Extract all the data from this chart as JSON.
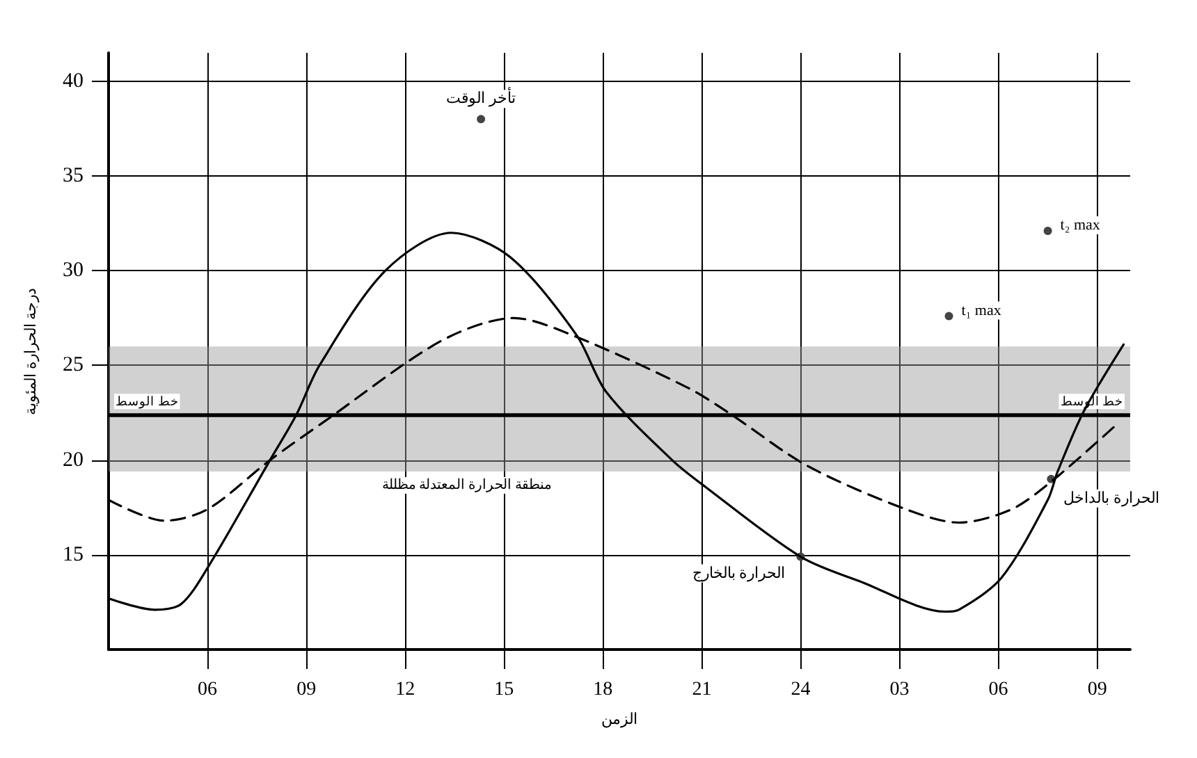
{
  "chart_data": {
    "type": "line",
    "xlabel": "الزمن",
    "ylabel": "درجة الحرارة المئوية",
    "x": [
      "--01-01T03:00",
      "--01-01T04:24",
      "--01-01T05:12",
      "--01-01T06:00",
      "--01-01T07:54",
      "--01-01T08:42",
      "--01-01T09:24",
      "--01-01T11:24",
      "--01-01T13:24",
      "--01-01T15:12",
      "--01-01T17:12",
      "--01-01T18:06",
      "--01-01T20:06",
      "--01-01T21:06",
      "--01-02T00:00",
      "--01-02T01:48",
      "--01-02T04:24",
      "--01-02T04:48",
      "--01-02T06:06",
      "--01-02T07:30",
      "--01-02T07:48",
      "--01-02T08:36",
      "--01-02T09:48"
    ],
    "series": [
      {
        "name": null,
        "color": "#000000",
        "line_style": "solid",
        "values": [
          12.7,
          12.1,
          12.4,
          14.3,
          20,
          22.4,
          25,
          30,
          32,
          30.7,
          26.6,
          23.6,
          20,
          18.6,
          14.9,
          13.6,
          12.0,
          12.1,
          13.8,
          17.9,
          19.4,
          22.6,
          26.1
        ]
      },
      {
        "name": null,
        "color": "#000000",
        "line_style": "dashed",
        "x": [
          "--01-01T03:00",
          "--01-01T04:42",
          "--01-01T06:00",
          "--01-01T07:54",
          "--01-01T09:36",
          "--01-01T13:06",
          "--01-01T15:18",
          "--01-01T17:12",
          "--01-01T20:36",
          "--01-01T21:54",
          "--01-02T00:12",
          "--01-02T03:12",
          "--01-02T04:48",
          "--01-02T06:24",
          "--01-02T07:42",
          "--01-02T09:36"
        ],
        "values": [
          17.9,
          16.8,
          17.4,
          20,
          22.1,
          26.3,
          27.5,
          26.5,
          23.8,
          22.4,
          19.7,
          17.4,
          16.7,
          17.4,
          19.0,
          21.9
        ]
      }
    ],
    "xlim": [
      "--01-01T03:00",
      "--01-02T10:00"
    ],
    "ylim": [
      10,
      41.5
    ],
    "xticks": [
      {
        "value": "--01-01T06:00",
        "label": "06"
      },
      {
        "value": "--01-01T09:00",
        "label": "09"
      },
      {
        "value": "--01-01T12:00",
        "label": "12"
      },
      {
        "value": "--01-01T15:00",
        "label": "15"
      },
      {
        "value": "--01-01T18:00",
        "label": "18"
      },
      {
        "value": "--01-01T21:00",
        "label": "21"
      },
      {
        "value": "--01-02T00:00",
        "label": "24"
      },
      {
        "value": "--01-02T03:00",
        "label": "03"
      },
      {
        "value": "--01-02T06:00",
        "label": "06"
      },
      {
        "value": "--01-02T09:00",
        "label": "09"
      }
    ],
    "yticks": [
      15,
      20,
      25,
      30,
      35,
      40
    ],
    "grid": true,
    "marker": "none",
    "bands": [
      {
        "axis": "y",
        "from": 19.4,
        "to": 26,
        "label": "منطقة الحرارة المعتدلة مظللة",
        "color": "#9a9a9a"
      }
    ],
    "ref_lines": [
      {
        "axis": "y",
        "value": 22.4,
        "label": "خط الوسط",
        "color": "#000000"
      }
    ],
    "annotations": [
      {
        "text": "تأخر الوقت",
        "x": "--01-01T14:18",
        "y": 38
      },
      {
        "text": "t₁ max",
        "x": "--01-02T04:30",
        "y": 27.6
      },
      {
        "text": "t₂ max",
        "x": "--01-02T07:30",
        "y": 32.1
      },
      {
        "text": "الحرارة بالخارج",
        "x": "--01-02T00:00",
        "y": 14.9
      },
      {
        "text": "الحرارة بالداخل",
        "x": "--01-02T07:36",
        "y": 19.0
      }
    ]
  }
}
